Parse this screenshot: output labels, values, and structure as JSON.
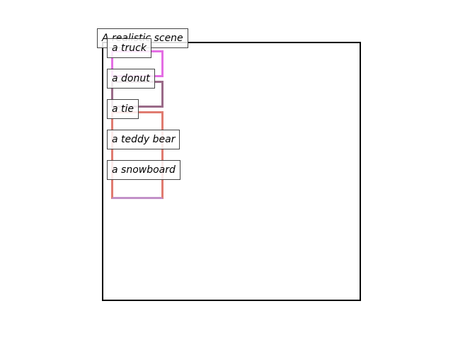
{
  "scene": {
    "title": "A realistic scene"
  },
  "objects": [
    {
      "label": "a truck",
      "color": "#e46ee4"
    },
    {
      "label": "a donut",
      "color": "#9a6a88"
    },
    {
      "label": "a tie",
      "color": "#e07b70"
    },
    {
      "label": "a teddy bear",
      "color": "#d08a88"
    },
    {
      "label": "a snowboard",
      "color": "#c291c8"
    }
  ]
}
